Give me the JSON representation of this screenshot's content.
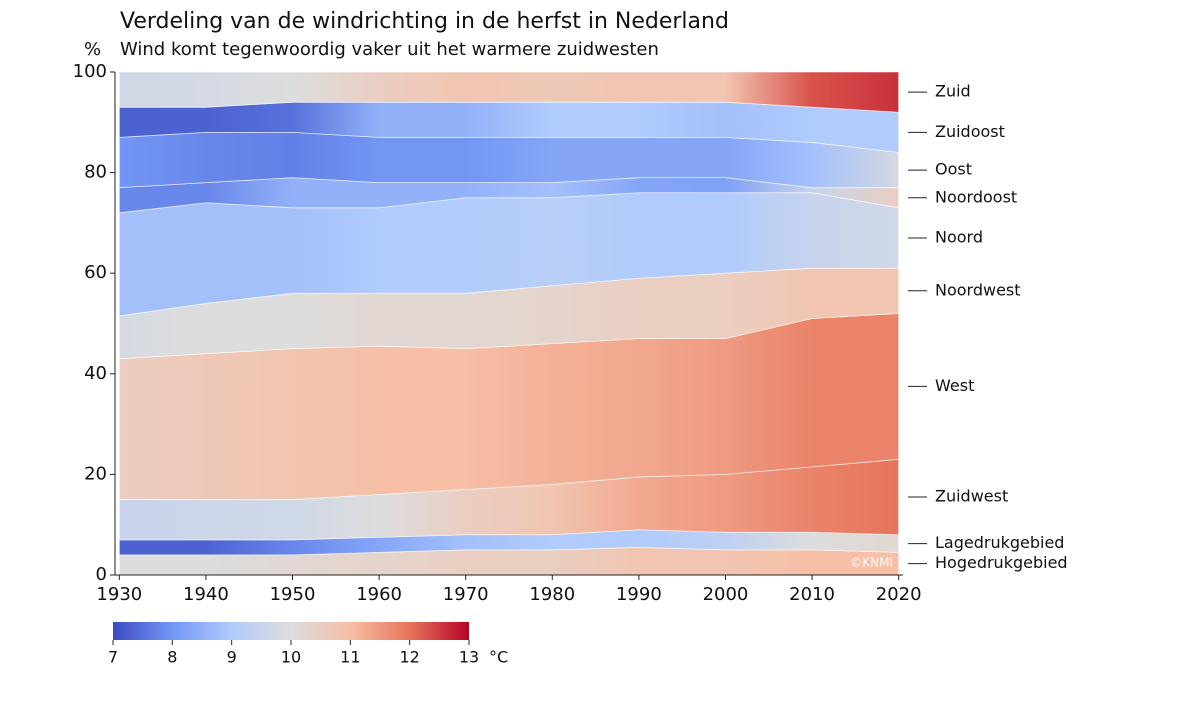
{
  "chart_data": {
    "type": "area",
    "title": "Verdeling van de windrichting in de herfst in Nederland",
    "subtitle": "Wind komt tegenwoordig vaker uit het warmere zuidwesten",
    "y_label": "%",
    "credit": "©KNMI",
    "x": [
      1930,
      1940,
      1950,
      1960,
      1970,
      1980,
      1990,
      2000,
      2010,
      2020
    ],
    "xlim": [
      1929.5,
      2020.5
    ],
    "xticks": [
      1930,
      1940,
      1950,
      1960,
      1970,
      1980,
      1990,
      2000,
      2010,
      2020
    ],
    "ylim": [
      0,
      100
    ],
    "yticks": [
      0,
      20,
      40,
      60,
      80,
      100
    ],
    "stacked": true,
    "series": [
      {
        "name": "Hogedrukgebied",
        "values": [
          4,
          4,
          4,
          4.5,
          5,
          5,
          5.5,
          5,
          5,
          4.5
        ],
        "temperature": [
          10,
          10,
          10.2,
          10.3,
          10.5,
          10.5,
          10.8,
          10.8,
          11,
          11
        ]
      },
      {
        "name": "Lagedrukgebied",
        "values": [
          3,
          3,
          3,
          3,
          3,
          3,
          3.5,
          3.5,
          3.5,
          3.5
        ],
        "temperature": [
          7.3,
          7.3,
          7.8,
          8.3,
          8.8,
          9,
          9,
          9.3,
          10,
          10.2
        ]
      },
      {
        "name": "Zuidwest",
        "values": [
          8,
          8,
          8,
          8.5,
          9,
          10,
          10.5,
          11.5,
          13,
          15
        ],
        "temperature": [
          9.5,
          9.6,
          9.7,
          10,
          10.5,
          10.8,
          11.3,
          11.5,
          11.8,
          12
        ]
      },
      {
        "name": "West",
        "values": [
          28,
          29,
          30,
          29.5,
          28,
          28,
          27.5,
          27,
          29.5,
          29
        ],
        "temperature": [
          10.5,
          10.7,
          10.8,
          11,
          11,
          11.2,
          11.3,
          11.5,
          11.8,
          11.8
        ]
      },
      {
        "name": "Noordwest",
        "values": [
          8.5,
          10,
          11,
          10.5,
          11,
          11.5,
          12,
          13,
          10,
          9
        ],
        "temperature": [
          9.8,
          10,
          10,
          10.2,
          10.2,
          10.3,
          10.5,
          10.5,
          10.8,
          10.8
        ]
      },
      {
        "name": "Noord",
        "values": [
          20.5,
          20,
          17,
          17,
          19,
          17.5,
          17,
          16,
          15,
          12
        ],
        "temperature": [
          8.8,
          8.8,
          8.8,
          9,
          9,
          9.2,
          9,
          9,
          9.5,
          9.7
        ]
      },
      {
        "name": "Noordoost",
        "values": [
          5,
          4,
          6,
          5,
          3,
          3,
          3,
          3,
          1,
          4
        ],
        "temperature": [
          7.8,
          7.8,
          8.5,
          8.5,
          8.5,
          8.8,
          8.3,
          8.2,
          9.5,
          10.5
        ]
      },
      {
        "name": "Oost",
        "values": [
          10,
          10,
          9,
          9,
          9,
          9,
          8,
          8,
          9,
          7
        ],
        "temperature": [
          8,
          7.8,
          7.7,
          8,
          8,
          8.3,
          8.3,
          8.3,
          8.8,
          9.8
        ]
      },
      {
        "name": "Zuidoost",
        "values": [
          6,
          5,
          6,
          7,
          7,
          7,
          7,
          7,
          7,
          8
        ],
        "temperature": [
          7.3,
          7.3,
          7.5,
          8.5,
          8.5,
          9,
          9,
          8.8,
          9,
          9
        ]
      },
      {
        "name": "Zuid",
        "values": [
          7,
          7,
          6,
          6,
          6,
          6,
          6,
          6,
          7,
          8
        ],
        "temperature": [
          9.7,
          9.8,
          10,
          10.5,
          10.8,
          10.7,
          10.8,
          10.8,
          12.3,
          12.6
        ]
      }
    ],
    "colormap": [
      "#3b4cc0",
      "#7396f5",
      "#b0cbfc",
      "#dddddd",
      "#f6bfa6",
      "#e7745b",
      "#b40426"
    ],
    "colorbar": {
      "lim": [
        7,
        13
      ],
      "ticks": [
        7,
        8,
        9,
        10,
        11,
        12,
        13
      ],
      "unit": "°C"
    }
  }
}
